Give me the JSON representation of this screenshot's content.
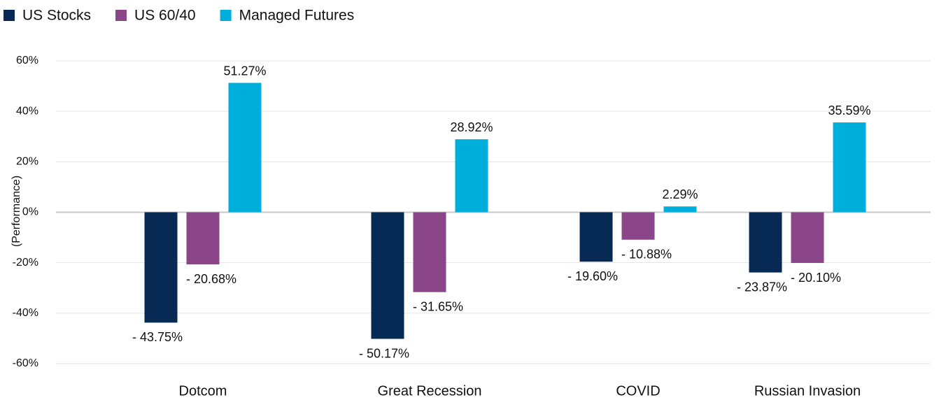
{
  "chart_data": {
    "type": "bar",
    "ylabel": "(Performance)",
    "categories": [
      "Dotcom",
      "Great Recession",
      "COVID",
      "Russian Invasion"
    ],
    "series": [
      {
        "name": "US Stocks",
        "color": "#062a53",
        "values": [
          -43.75,
          -50.17,
          -19.6,
          -23.87
        ],
        "value_labels": [
          "- 43.75%",
          "- 50.17%",
          "- 19.60%",
          "- 23.87%"
        ]
      },
      {
        "name": "US 60/40",
        "color": "#8b4589",
        "values": [
          -20.68,
          -31.65,
          -10.88,
          -20.1
        ],
        "value_labels": [
          "- 20.68%",
          "- 31.65%",
          "- 10.88%",
          "- 20.10%"
        ]
      },
      {
        "name": "Managed Futures",
        "color": "#00aedb",
        "values": [
          51.27,
          28.92,
          2.29,
          35.59
        ],
        "value_labels": [
          "51.27%",
          "28.92%",
          "2.29%",
          "35.59%"
        ]
      }
    ],
    "ylim": [
      -60,
      60
    ],
    "yticks": [
      {
        "value": -60,
        "label": "-60%"
      },
      {
        "value": -40,
        "label": "-40%"
      },
      {
        "value": -20,
        "label": "-20%"
      },
      {
        "value": 0,
        "label": "0%"
      },
      {
        "value": 20,
        "label": "20%"
      },
      {
        "value": 40,
        "label": "40%"
      },
      {
        "value": 60,
        "label": "60%"
      }
    ],
    "grid": true,
    "legend": "top-left"
  }
}
